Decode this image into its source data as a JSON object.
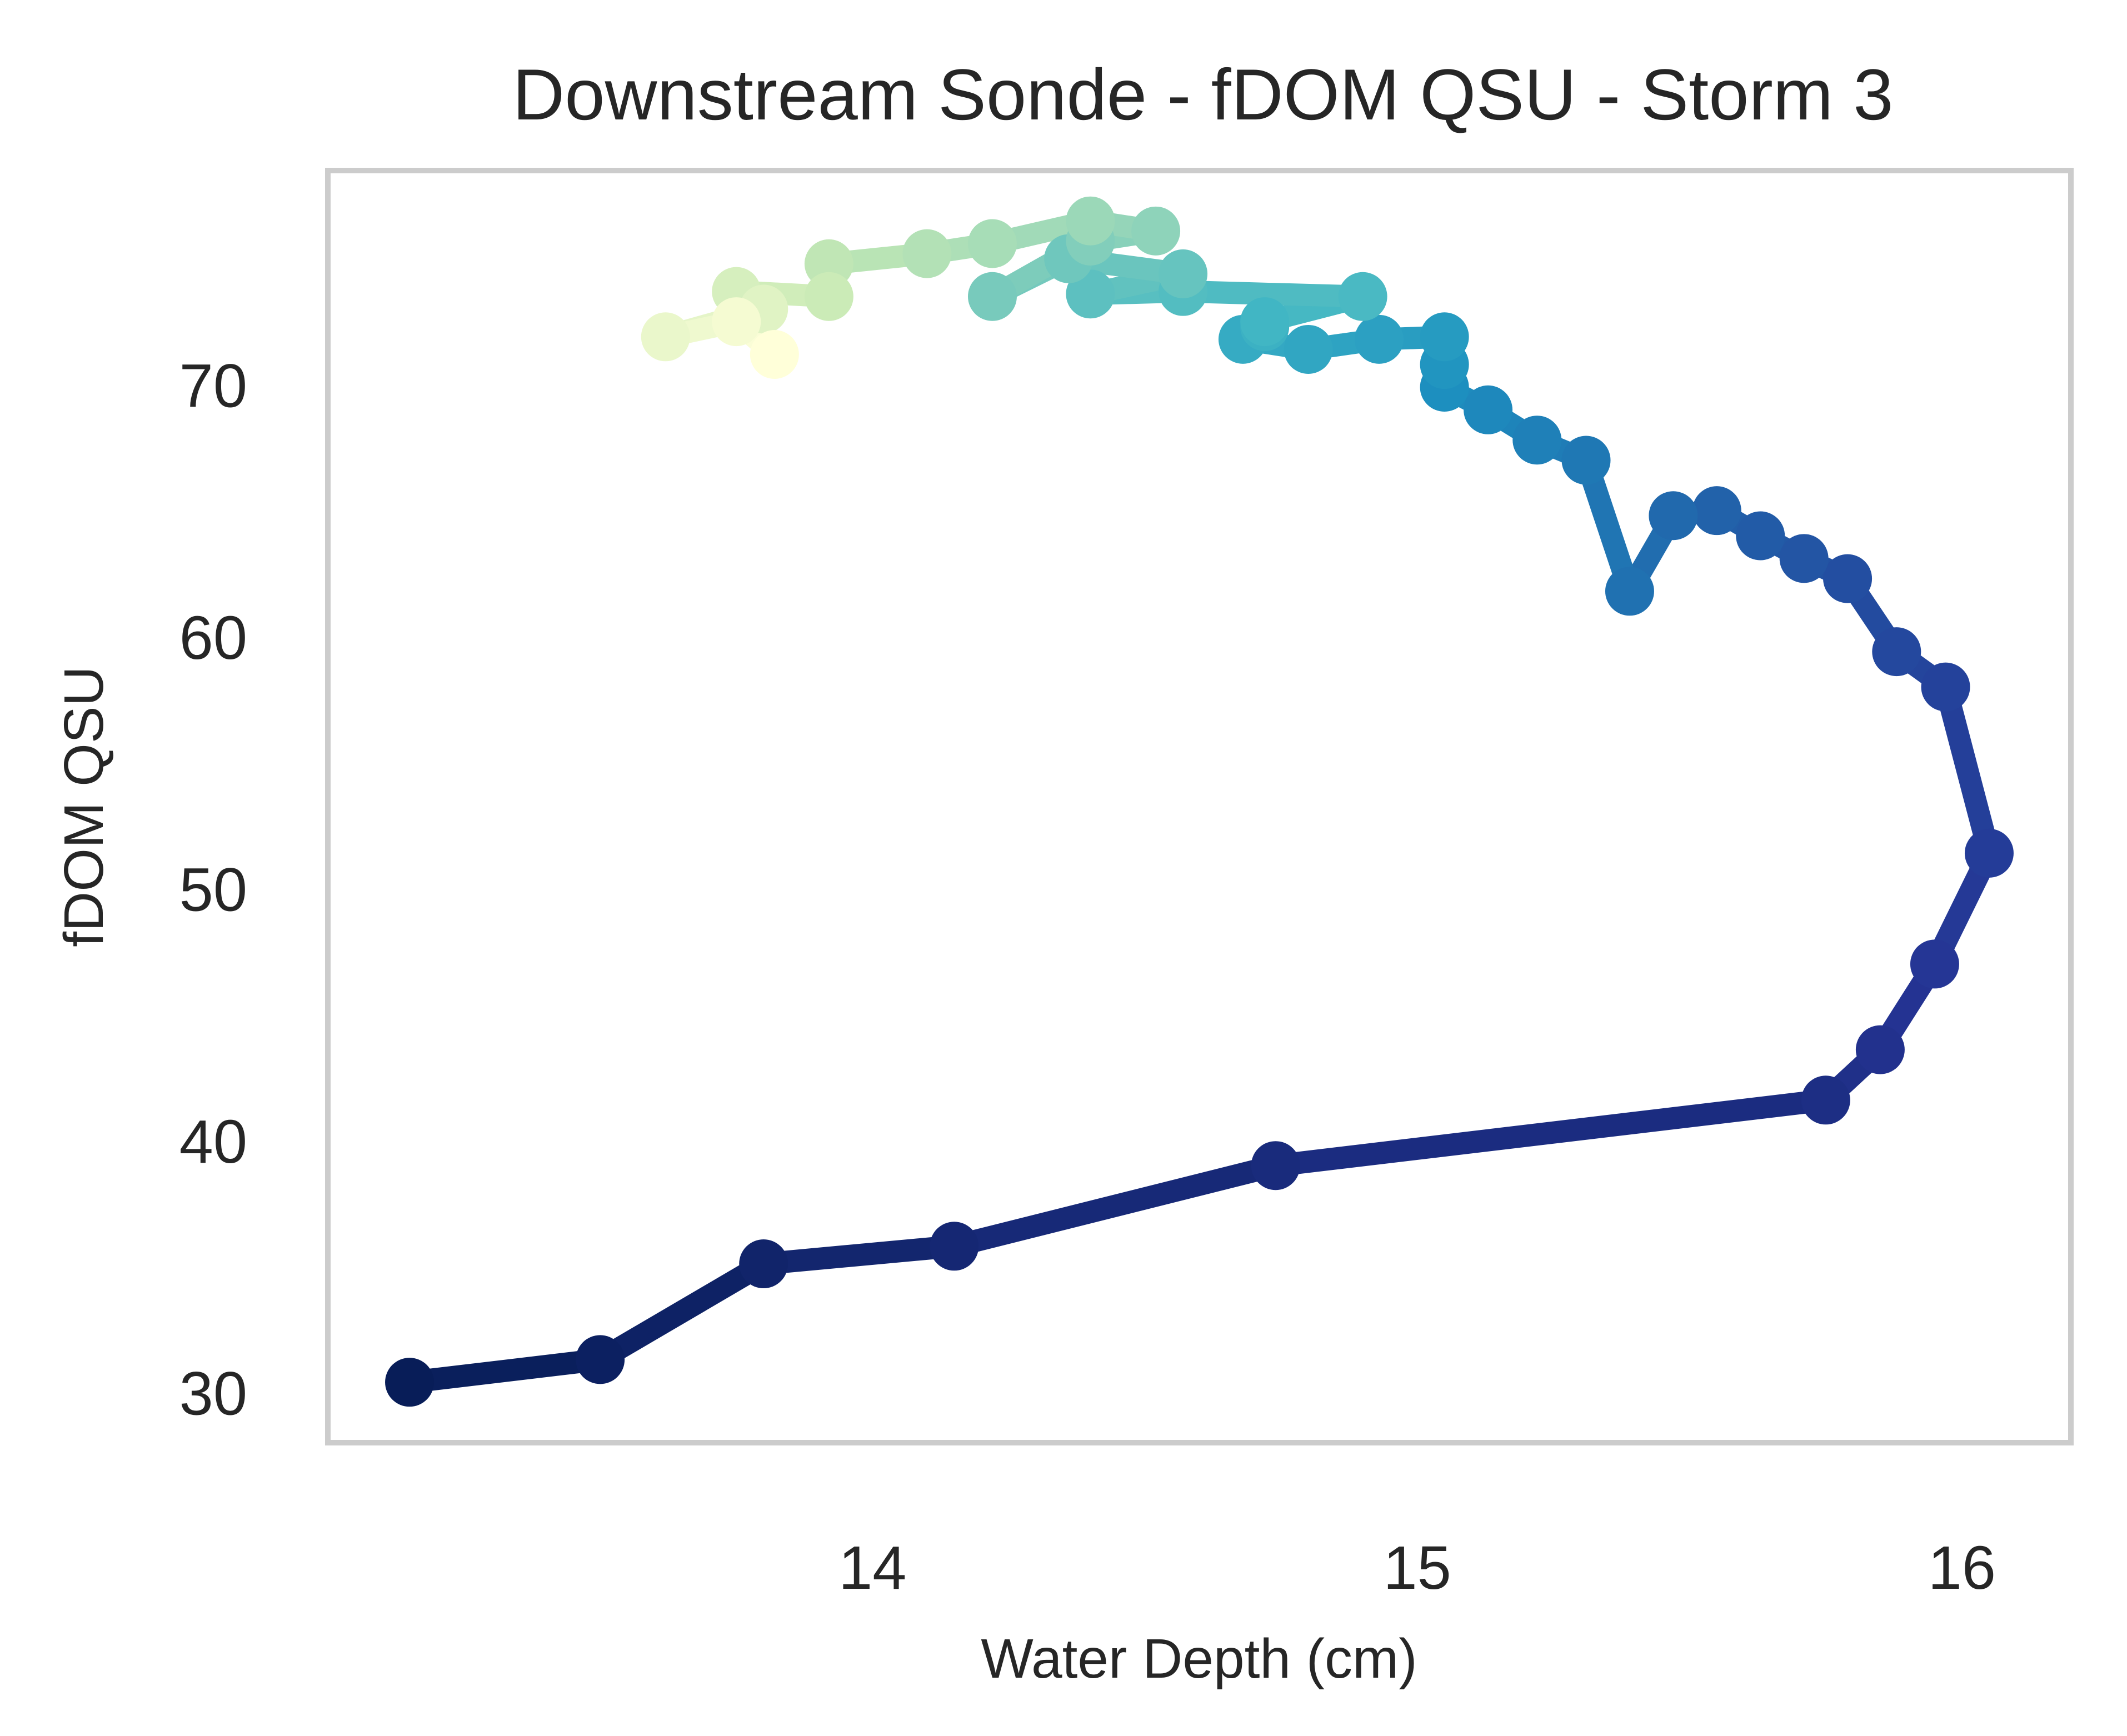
{
  "chart_data": {
    "type": "line",
    "title": "Downstream Sonde - fDOM QSU - Storm 3",
    "xlabel": "Water Depth (cm)",
    "ylabel": "fDOM QSU",
    "xlim": [
      13.0,
      16.2
    ],
    "ylim": [
      28.0,
      78.5
    ],
    "xticks": [
      14,
      15,
      16
    ],
    "yticks": [
      30,
      40,
      50,
      60,
      70
    ],
    "grid": false,
    "colormap": "YlGnBu",
    "markers": true,
    "series": [
      {
        "x": [
          13.15,
          13.5,
          13.8,
          14.15,
          14.74,
          15.75,
          15.85,
          15.95,
          16.05,
          15.97,
          15.88,
          15.79,
          15.71,
          15.63,
          15.55,
          15.47,
          15.39,
          15.31,
          15.22,
          15.13,
          15.05,
          15.05,
          15.05,
          14.93,
          14.8,
          14.68,
          14.72,
          14.72,
          14.9,
          14.57,
          14.4,
          14.57,
          14.36,
          14.22,
          14.4,
          14.52,
          14.4,
          14.22,
          14.1,
          13.92,
          13.92,
          13.75,
          13.8,
          13.62,
          13.75,
          13.82
        ],
        "y": [
          30.4,
          31.3,
          35.1,
          35.8,
          39.0,
          41.6,
          43.6,
          47.0,
          51.4,
          58.0,
          59.4,
          62.3,
          63.1,
          64.0,
          65.0,
          64.8,
          61.8,
          67.0,
          67.8,
          69.0,
          69.9,
          70.8,
          71.9,
          71.8,
          71.4,
          71.8,
          72.3,
          72.5,
          73.5,
          73.7,
          73.6,
          74.4,
          75.0,
          73.5,
          75.7,
          76.1,
          76.5,
          75.6,
          75.2,
          74.8,
          73.5,
          73.7,
          73.0,
          71.9,
          72.5,
          71.2
        ]
      }
    ]
  }
}
